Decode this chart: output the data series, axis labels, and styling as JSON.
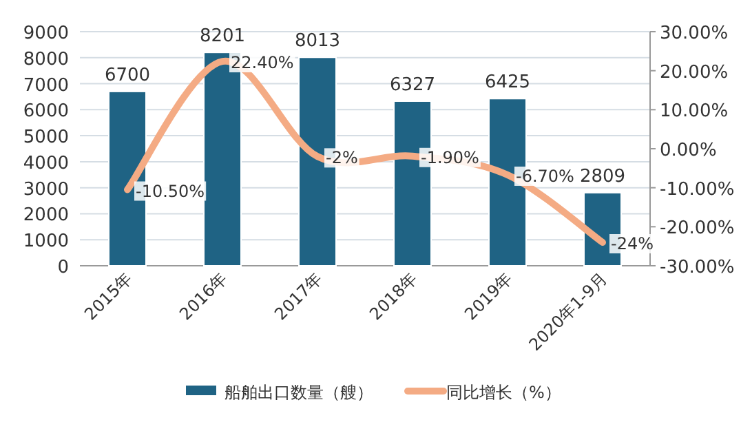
{
  "chart_data": {
    "type": "bar",
    "categories": [
      "2015年",
      "2016年",
      "2017年",
      "2018年",
      "2019年",
      "2020年1-9月"
    ],
    "series": [
      {
        "name": "船舶出口数量（艘）",
        "color": "#1f6384",
        "values": [
          6700,
          8201,
          8013,
          6327,
          6425,
          2809
        ]
      },
      {
        "name": "同比增长（%）",
        "type": "line",
        "axis": "y2",
        "color": "#f4ab84",
        "values": [
          -10.5,
          22.4,
          -2,
          -1.9,
          -6.7,
          -24
        ],
        "value_labels": [
          "-10.50%",
          "22.40%",
          "-2%",
          "-1.90%",
          "-6.70%",
          "-24%"
        ]
      }
    ],
    "ylim": [
      0,
      9000
    ],
    "yticks": [
      0,
      1000,
      2000,
      3000,
      4000,
      5000,
      6000,
      7000,
      8000,
      9000
    ],
    "y2lim": [
      -30,
      30
    ],
    "y2ticks": [
      {
        "value": -30,
        "label": "-30.00%"
      },
      {
        "value": -20,
        "label": "-20.00%"
      },
      {
        "value": -10,
        "label": "-10.00%"
      },
      {
        "value": 0,
        "label": "0.00%"
      },
      {
        "value": 10,
        "label": "10.00%"
      },
      {
        "value": 20,
        "label": "20.00%"
      },
      {
        "value": 30,
        "label": "30.00%"
      }
    ],
    "data_labels": true,
    "grid": "y",
    "legend": "bottom",
    "marker": "none",
    "line_style": "solid"
  }
}
